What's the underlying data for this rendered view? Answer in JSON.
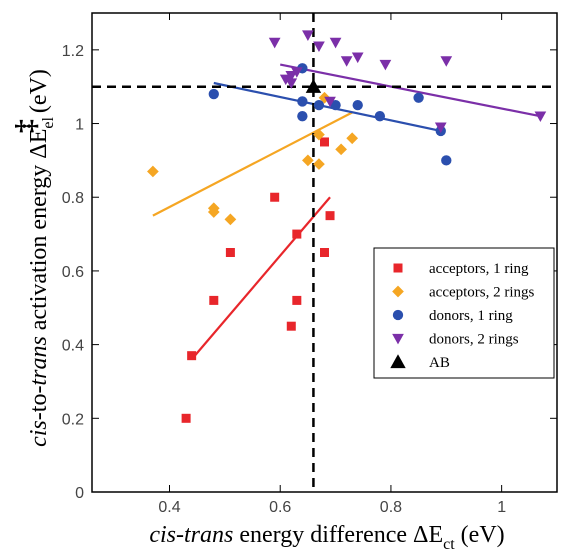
{
  "chart_data": {
    "type": "scatter",
    "xlabel": {
      "italic": "cis-trans",
      "rest": " energy difference ΔE",
      "sub": "ct",
      "unit": " (eV)"
    },
    "ylabel": {
      "italic1": "cis",
      "mid": "-to-",
      "italic2": "trans",
      "rest": " activation energy ΔE",
      "sub": "el",
      "sup": "‡",
      "unit": " (eV)"
    },
    "xlim": [
      0.26,
      1.1
    ],
    "ylim": [
      0,
      1.3
    ],
    "xticks": [
      0.4,
      0.6,
      0.8,
      1
    ],
    "xtick_labels": [
      "0.4",
      "0.6",
      "0.8",
      "1"
    ],
    "yticks": [
      0,
      0.2,
      0.4,
      0.6,
      0.8,
      1,
      1.2
    ],
    "ytick_labels": [
      "0",
      "0.2",
      "0.4",
      "0.6",
      "0.8",
      "1",
      "1.2"
    ],
    "grid": false,
    "legend_position": "middle-right",
    "reference_lines": {
      "x": 0.66,
      "y": 1.1
    },
    "series": [
      {
        "name": "acceptors, 1 ring",
        "marker": "square",
        "color": "#e8262b",
        "points": [
          [
            0.43,
            0.2
          ],
          [
            0.44,
            0.37
          ],
          [
            0.48,
            0.52
          ],
          [
            0.51,
            0.65
          ],
          [
            0.59,
            0.8
          ],
          [
            0.62,
            0.45
          ],
          [
            0.63,
            0.7
          ],
          [
            0.63,
            0.52
          ],
          [
            0.68,
            0.95
          ],
          [
            0.68,
            0.65
          ],
          [
            0.69,
            0.75
          ]
        ],
        "fit": [
          [
            0.44,
            0.36
          ],
          [
            0.69,
            0.8
          ]
        ]
      },
      {
        "name": "acceptors, 2 rings",
        "marker": "diamond",
        "color": "#f5a623",
        "points": [
          [
            0.37,
            0.87
          ],
          [
            0.48,
            0.77
          ],
          [
            0.48,
            0.76
          ],
          [
            0.51,
            0.74
          ],
          [
            0.65,
            0.9
          ],
          [
            0.67,
            0.89
          ],
          [
            0.67,
            0.97
          ],
          [
            0.68,
            1.07
          ],
          [
            0.71,
            0.93
          ],
          [
            0.73,
            0.96
          ]
        ],
        "fit": [
          [
            0.37,
            0.75
          ],
          [
            0.73,
            1.03
          ]
        ]
      },
      {
        "name": "donors, 1 ring",
        "marker": "circle",
        "color": "#2b4fae",
        "points": [
          [
            0.48,
            1.08
          ],
          [
            0.64,
            1.15
          ],
          [
            0.64,
            1.06
          ],
          [
            0.64,
            1.02
          ],
          [
            0.67,
            1.05
          ],
          [
            0.7,
            1.05
          ],
          [
            0.74,
            1.05
          ],
          [
            0.78,
            1.02
          ],
          [
            0.85,
            1.07
          ],
          [
            0.89,
            0.98
          ],
          [
            0.9,
            0.9
          ]
        ],
        "fit": [
          [
            0.48,
            1.11
          ],
          [
            0.89,
            0.98
          ]
        ]
      },
      {
        "name": "donors, 2 rings",
        "marker": "triangle-down",
        "color": "#7b2fa8",
        "points": [
          [
            0.59,
            1.22
          ],
          [
            0.61,
            1.12
          ],
          [
            0.62,
            1.11
          ],
          [
            0.62,
            1.13
          ],
          [
            0.63,
            1.14
          ],
          [
            0.65,
            1.24
          ],
          [
            0.67,
            1.21
          ],
          [
            0.69,
            1.06
          ],
          [
            0.7,
            1.22
          ],
          [
            0.72,
            1.17
          ],
          [
            0.74,
            1.18
          ],
          [
            0.79,
            1.16
          ],
          [
            0.89,
            0.99
          ],
          [
            0.9,
            1.17
          ],
          [
            1.07,
            1.02
          ]
        ],
        "fit": [
          [
            0.6,
            1.16
          ],
          [
            1.07,
            1.02
          ]
        ]
      },
      {
        "name": "AB",
        "marker": "triangle-up",
        "color": "#000000",
        "points": [
          [
            0.66,
            1.1
          ]
        ]
      }
    ]
  }
}
